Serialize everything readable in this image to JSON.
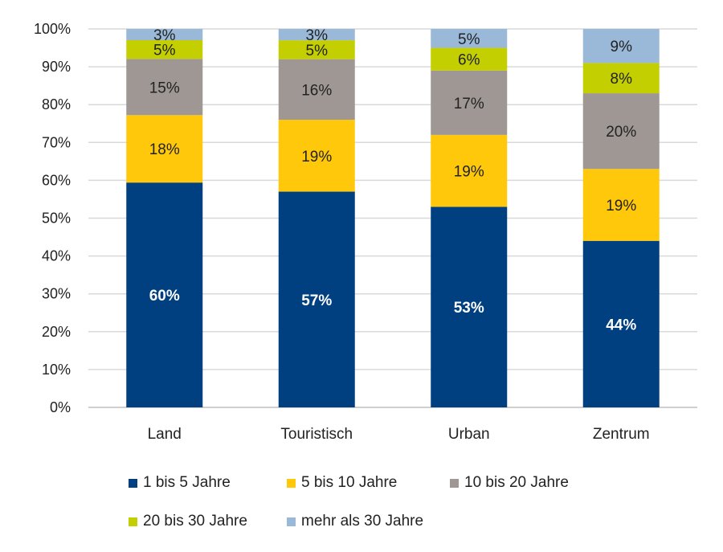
{
  "chart_data": {
    "type": "bar",
    "stacked": true,
    "title": "",
    "xlabel": "",
    "ylabel": "",
    "ylim": [
      0,
      100
    ],
    "yticks": [
      "0%",
      "10%",
      "20%",
      "30%",
      "40%",
      "50%",
      "60%",
      "70%",
      "80%",
      "90%",
      "100%"
    ],
    "grid": true,
    "legend_position": "bottom",
    "categories": [
      "Land",
      "Touristisch",
      "Urban",
      "Zentrum"
    ],
    "series": [
      {
        "name": "1 bis 5 Jahre",
        "color": "#004080",
        "label_color": "#ffffff",
        "values": [
          60,
          57,
          53,
          44
        ]
      },
      {
        "name": "5 bis 10 Jahre",
        "color": "#ffc80a",
        "label_color": "#222222",
        "values": [
          18,
          19,
          19,
          19
        ]
      },
      {
        "name": "10 bis 20 Jahre",
        "color": "#9e9794",
        "label_color": "#222222",
        "values": [
          15,
          16,
          17,
          20
        ]
      },
      {
        "name": "20 bis 30 Jahre",
        "color": "#c3cf00",
        "label_color": "#222222",
        "values": [
          5,
          5,
          6,
          8
        ]
      },
      {
        "name": "mehr als 30 Jahre",
        "color": "#9ab8d8",
        "label_color": "#222222",
        "values": [
          3,
          3,
          5,
          9
        ]
      }
    ]
  }
}
